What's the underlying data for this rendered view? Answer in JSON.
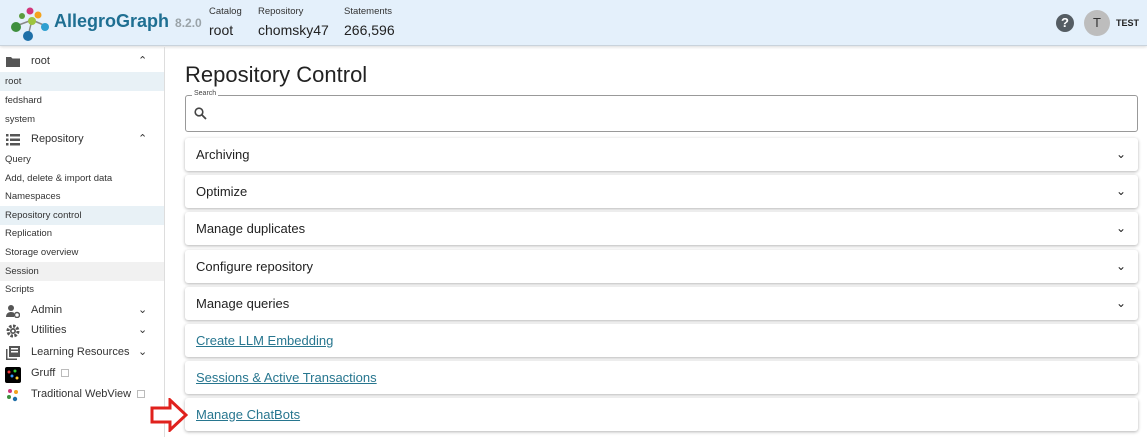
{
  "header": {
    "brand": "AllegroGraph",
    "version": "8.2.0",
    "meta": [
      {
        "label": "Catalog",
        "value": "root"
      },
      {
        "label": "Repository",
        "value": "chomsky47"
      },
      {
        "label": "Statements",
        "value": "266,596"
      }
    ],
    "avatar_initial": "T",
    "user": "TEST",
    "help": "?"
  },
  "sidebar": {
    "catalog_group": "root",
    "catalogs": [
      "root",
      "fedshard",
      "system"
    ],
    "repository_group": "Repository",
    "repo_items": [
      "Query",
      "Add, delete & import data",
      "Namespaces",
      "Repository control",
      "Replication",
      "Storage overview",
      "Session",
      "Scripts"
    ],
    "groups": [
      "Admin",
      "Utilities",
      "Learning Resources"
    ],
    "links": [
      "Gruff",
      "Traditional WebView"
    ]
  },
  "main": {
    "title": "Repository Control",
    "search_label": "Search",
    "search_value": "",
    "sections": [
      "Archiving",
      "Optimize",
      "Manage duplicates",
      "Configure repository",
      "Manage queries"
    ],
    "links": [
      "Create LLM Embedding",
      "Sessions & Active Transactions",
      "Manage ChatBots"
    ]
  },
  "colors": {
    "link": "#27768f",
    "brand": "#1f6f92",
    "header_bg": "#e4f0fb",
    "arrow": "#e0211d"
  }
}
